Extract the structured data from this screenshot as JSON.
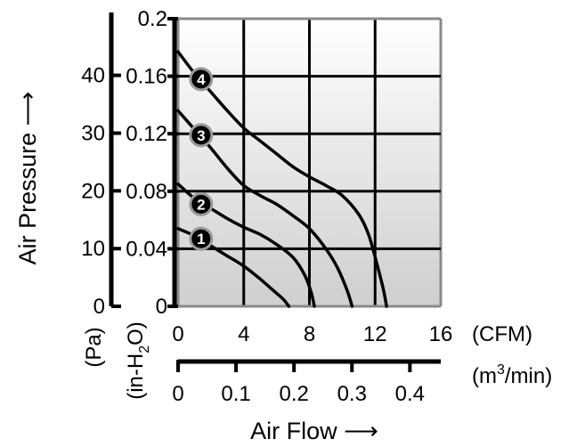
{
  "chart_data": {
    "type": "line",
    "x_axis": {
      "ticks": [
        "0",
        "4",
        "8",
        "12",
        "16"
      ],
      "unit": "(CFM)",
      "range": [
        0,
        16
      ]
    },
    "x_axis_secondary": {
      "ticks": [
        "0",
        "0.1",
        "0.2",
        "0.3",
        "0.4"
      ],
      "ticks_at_cfm": [
        0,
        3.53,
        7.06,
        10.59,
        14.12
      ],
      "unit_base": "(m",
      "unit_sup": "3",
      "unit_tail": "/min)"
    },
    "x_title": "Air Flow ⟶",
    "y_axis": {
      "ticks": [
        "0",
        "0.04",
        "0.08",
        "0.12",
        "0.16",
        "0.2"
      ],
      "range": [
        0,
        0.2
      ],
      "unit_pre": "(in-H",
      "unit_sub": "2",
      "unit_post": "O)"
    },
    "y_axis_secondary": {
      "ticks": [
        "0",
        "10",
        "20",
        "30",
        "40"
      ],
      "ticks_at_inh2o": [
        0,
        0.0401,
        0.0803,
        0.1204,
        0.1606
      ],
      "unit": "(Pa)"
    },
    "y_title": "Air Pressure ⟶",
    "grid": true,
    "series": [
      {
        "name": "1",
        "points": [
          [
            0,
            0.054
          ],
          [
            1,
            0.049
          ],
          [
            2,
            0.042
          ],
          [
            3,
            0.035
          ],
          [
            4,
            0.028
          ],
          [
            5,
            0.019
          ],
          [
            5.8,
            0.011
          ],
          [
            6.4,
            0.005
          ],
          [
            6.75,
            0
          ]
        ]
      },
      {
        "name": "2",
        "points": [
          [
            0,
            0.085
          ],
          [
            1,
            0.075
          ],
          [
            2,
            0.068
          ],
          [
            3,
            0.061
          ],
          [
            4,
            0.055
          ],
          [
            5,
            0.05
          ],
          [
            6,
            0.043
          ],
          [
            7,
            0.034
          ],
          [
            7.7,
            0.022
          ],
          [
            8.1,
            0.01
          ],
          [
            8.3,
            0
          ]
        ]
      },
      {
        "name": "3",
        "points": [
          [
            0,
            0.136
          ],
          [
            1,
            0.123
          ],
          [
            2,
            0.11
          ],
          [
            3,
            0.096
          ],
          [
            4,
            0.084
          ],
          [
            5,
            0.077
          ],
          [
            6,
            0.071
          ],
          [
            7,
            0.063
          ],
          [
            8,
            0.054
          ],
          [
            9,
            0.04
          ],
          [
            9.7,
            0.027
          ],
          [
            10.3,
            0.011
          ],
          [
            10.6,
            0
          ]
        ]
      },
      {
        "name": "4",
        "points": [
          [
            0,
            0.177
          ],
          [
            1,
            0.162
          ],
          [
            2,
            0.149
          ],
          [
            3,
            0.136
          ],
          [
            4,
            0.124
          ],
          [
            5,
            0.115
          ],
          [
            6,
            0.106
          ],
          [
            7,
            0.097
          ],
          [
            8,
            0.09
          ],
          [
            9,
            0.084
          ],
          [
            10,
            0.077
          ],
          [
            11,
            0.064
          ],
          [
            11.6,
            0.05
          ],
          [
            12.1,
            0.03
          ],
          [
            12.5,
            0.012
          ],
          [
            12.7,
            0
          ]
        ]
      }
    ],
    "markers": [
      {
        "label": "1",
        "x": 1.4,
        "y": 0.047
      },
      {
        "label": "2",
        "x": 1.4,
        "y": 0.071
      },
      {
        "label": "3",
        "x": 1.4,
        "y": 0.119
      },
      {
        "label": "4",
        "x": 1.4,
        "y": 0.158
      }
    ]
  }
}
